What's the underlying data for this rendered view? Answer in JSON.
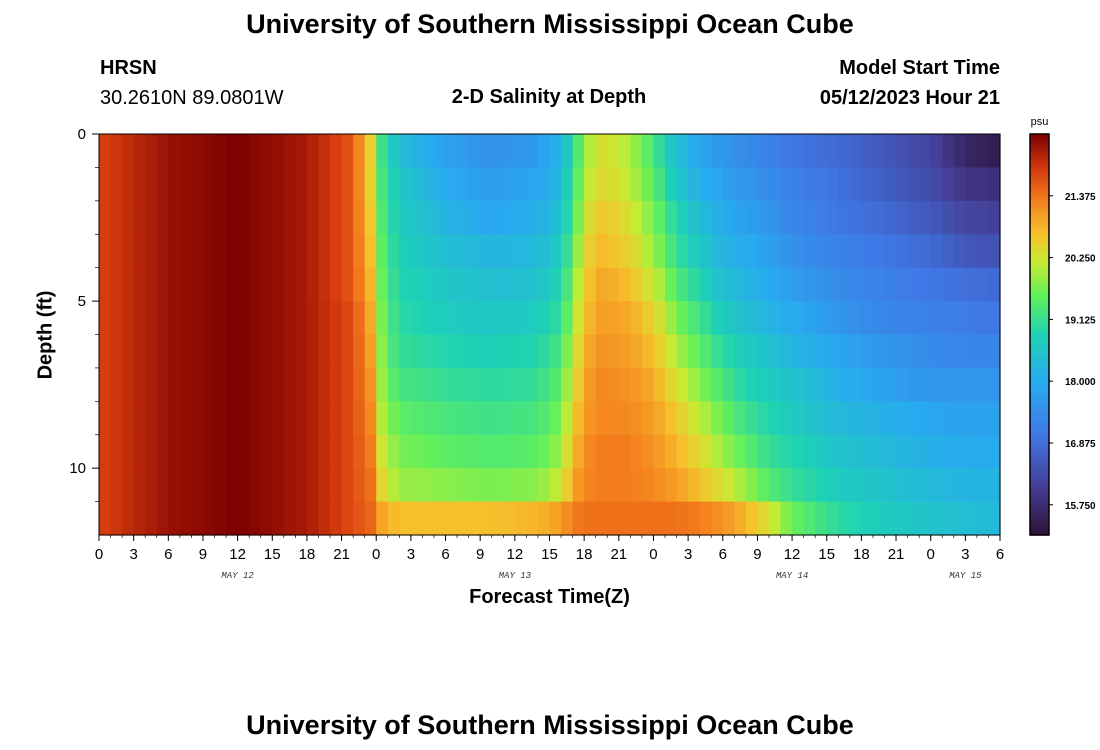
{
  "page": {
    "title_top": "University of Southern Mississippi Ocean Cube",
    "title_bottom": "University of Southern Mississippi Ocean Cube",
    "station_code": "HRSN",
    "station_coords": "30.2610N  89.0801W",
    "plot_title": "2-D Salinity at Depth",
    "model_start_label": "Model Start Time",
    "model_start_value": "05/12/2023 Hour 21"
  },
  "chart_data": {
    "type": "heatmap",
    "title": "2-D Salinity at Depth",
    "xlabel": "Forecast Time(Z)",
    "ylabel": "Depth (ft)",
    "x_range_hours": [
      0,
      78
    ],
    "ylim": [
      0,
      12
    ],
    "y_inverted": true,
    "x_tick_labels": [
      "0",
      "3",
      "6",
      "9",
      "12",
      "15",
      "18",
      "21",
      "0",
      "3",
      "6",
      "9",
      "12",
      "15",
      "18",
      "21",
      "0",
      "3",
      "6",
      "9",
      "12",
      "15",
      "18",
      "21",
      "0",
      "3",
      "6"
    ],
    "x_day_labels": [
      {
        "label": "MAY 12",
        "hour": 12
      },
      {
        "label": "MAY 13",
        "hour": 36
      },
      {
        "label": "MAY 14",
        "hour": 60
      },
      {
        "label": "MAY 15",
        "hour": 75
      }
    ],
    "y_ticks": [
      0,
      5,
      10
    ],
    "colorbar": {
      "unit": "psu",
      "ticks": [
        "21.375",
        "20.250",
        "19.125",
        "18.000",
        "16.875",
        "15.750"
      ],
      "tick_values": [
        21.375,
        20.25,
        19.125,
        18.0,
        16.875,
        15.75
      ],
      "vmin": 15.2,
      "vmax": 22.5
    },
    "depths_ft": [
      0.5,
      1.5,
      2.5,
      3.5,
      4.5,
      5.5,
      6.5,
      7.5,
      8.5,
      9.5,
      10.5,
      11.5
    ],
    "hours": [
      0,
      6,
      12,
      18,
      22,
      23.5,
      24,
      25,
      26,
      30,
      34,
      38,
      40,
      41,
      42,
      43,
      44,
      46,
      48,
      50,
      52,
      54,
      56,
      58,
      60,
      64,
      68,
      72,
      75,
      78
    ],
    "values": [
      [
        21.8,
        22.3,
        22.5,
        22.2,
        21.6,
        20.5,
        19.5,
        18.9,
        18.4,
        17.8,
        17.5,
        17.7,
        18.2,
        19.0,
        19.8,
        20.3,
        20.3,
        20.0,
        19.3,
        18.4,
        17.9,
        17.6,
        17.4,
        17.2,
        17.0,
        16.8,
        16.5,
        16.2,
        15.6,
        15.4
      ],
      [
        21.8,
        22.3,
        22.5,
        22.2,
        21.6,
        20.5,
        19.6,
        19.0,
        18.6,
        18.0,
        17.7,
        17.9,
        18.3,
        19.2,
        19.9,
        20.4,
        20.4,
        20.1,
        19.5,
        18.6,
        18.1,
        17.8,
        17.6,
        17.4,
        17.2,
        16.9,
        16.6,
        16.3,
        15.9,
        15.8
      ],
      [
        21.8,
        22.3,
        22.5,
        22.2,
        21.6,
        20.6,
        19.7,
        19.1,
        18.7,
        18.2,
        17.9,
        18.1,
        18.5,
        19.3,
        20.1,
        20.6,
        20.6,
        20.3,
        19.7,
        18.9,
        18.4,
        18.0,
        17.8,
        17.6,
        17.3,
        17.0,
        16.8,
        16.5,
        16.2,
        16.1
      ],
      [
        21.8,
        22.3,
        22.5,
        22.2,
        21.6,
        20.7,
        19.8,
        19.2,
        18.8,
        18.4,
        18.2,
        18.3,
        18.7,
        19.5,
        20.3,
        20.8,
        20.7,
        20.5,
        19.9,
        19.1,
        18.6,
        18.2,
        18.0,
        17.8,
        17.5,
        17.2,
        17.0,
        16.8,
        16.5,
        16.4
      ],
      [
        21.8,
        22.3,
        22.5,
        22.2,
        21.6,
        20.8,
        19.9,
        19.3,
        18.9,
        18.6,
        18.4,
        18.5,
        18.9,
        19.7,
        20.5,
        20.9,
        20.9,
        20.7,
        20.2,
        19.4,
        18.9,
        18.4,
        18.2,
        18.0,
        17.7,
        17.4,
        17.2,
        17.0,
        16.9,
        16.8
      ],
      [
        21.8,
        22.3,
        22.5,
        22.2,
        21.7,
        20.9,
        20.0,
        19.4,
        19.0,
        18.7,
        18.6,
        18.7,
        19.1,
        19.9,
        20.6,
        21.0,
        21.0,
        20.9,
        20.5,
        19.7,
        19.2,
        18.7,
        18.4,
        18.2,
        18.0,
        17.6,
        17.3,
        17.2,
        17.1,
        17.0
      ],
      [
        21.8,
        22.3,
        22.5,
        22.2,
        21.7,
        21.0,
        20.1,
        19.5,
        19.1,
        18.9,
        18.8,
        18.9,
        19.3,
        20.1,
        20.8,
        21.1,
        21.1,
        21.0,
        20.7,
        20.0,
        19.5,
        19.0,
        18.7,
        18.5,
        18.2,
        17.9,
        17.6,
        17.4,
        17.3,
        17.3
      ],
      [
        21.8,
        22.3,
        22.5,
        22.2,
        21.7,
        21.1,
        20.2,
        19.6,
        19.3,
        19.1,
        19.0,
        19.1,
        19.5,
        20.3,
        20.9,
        21.2,
        21.2,
        21.1,
        20.9,
        20.3,
        19.8,
        19.3,
        18.9,
        18.7,
        18.5,
        18.1,
        17.8,
        17.6,
        17.6,
        17.6
      ],
      [
        21.8,
        22.3,
        22.5,
        22.2,
        21.7,
        21.2,
        20.3,
        19.8,
        19.5,
        19.3,
        19.2,
        19.3,
        19.7,
        20.5,
        21.0,
        21.2,
        21.2,
        21.2,
        21.0,
        20.6,
        20.1,
        19.6,
        19.2,
        18.9,
        18.7,
        18.3,
        18.1,
        17.9,
        17.8,
        17.8
      ],
      [
        21.8,
        22.3,
        22.5,
        22.2,
        21.7,
        21.3,
        20.5,
        20.0,
        19.7,
        19.5,
        19.4,
        19.5,
        19.9,
        20.7,
        21.1,
        21.3,
        21.3,
        21.3,
        21.1,
        20.8,
        20.4,
        19.9,
        19.5,
        19.1,
        18.9,
        18.5,
        18.3,
        18.1,
        18.0,
        18.0
      ],
      [
        21.8,
        22.3,
        22.5,
        22.2,
        21.7,
        21.4,
        20.7,
        20.2,
        19.9,
        19.8,
        19.7,
        19.8,
        20.2,
        20.9,
        21.2,
        21.3,
        21.3,
        21.3,
        21.2,
        21.0,
        20.7,
        20.3,
        19.9,
        19.4,
        19.1,
        18.7,
        18.5,
        18.3,
        18.2,
        18.2
      ],
      [
        21.8,
        22.3,
        22.5,
        22.2,
        21.7,
        21.5,
        21.1,
        20.8,
        20.7,
        20.7,
        20.7,
        20.8,
        21.0,
        21.3,
        21.4,
        21.4,
        21.4,
        21.4,
        21.4,
        21.4,
        21.3,
        21.1,
        20.8,
        20.3,
        19.6,
        19.0,
        18.7,
        18.5,
        18.4,
        18.3
      ]
    ]
  }
}
